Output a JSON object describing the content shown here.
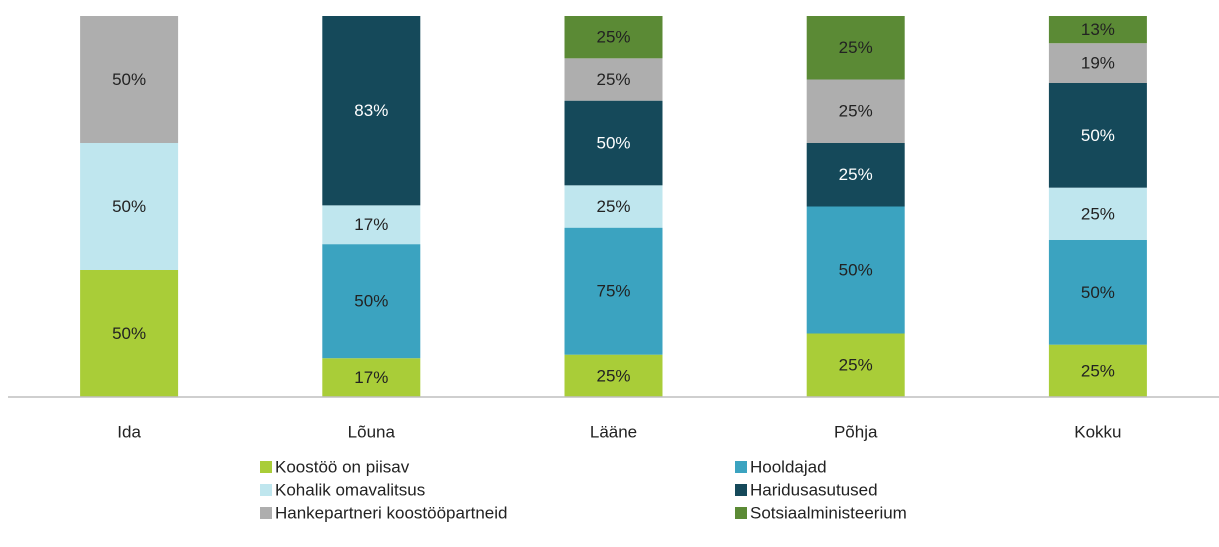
{
  "chart_data": {
    "type": "stacked100",
    "categories": [
      "Ida",
      "Lõuna",
      "Lääne",
      "Põhja",
      "Kokku"
    ],
    "series": [
      {
        "name": "Koostöö on piisav",
        "color": "#a9cd38",
        "values": [
          50,
          17,
          25,
          25,
          25
        ],
        "value_labels": [
          "50%",
          "17%",
          "25%",
          "25%",
          "25%"
        ]
      },
      {
        "name": "Hooldajad",
        "color": "#3ba3c0",
        "values": [
          null,
          50,
          75,
          50,
          50
        ],
        "value_labels": [
          null,
          "50%",
          "75%",
          "50%",
          "50%"
        ]
      },
      {
        "name": "Kohalik omavalitsus",
        "color": "#bfe6ee",
        "values": [
          50,
          17,
          25,
          null,
          25
        ],
        "value_labels": [
          "50%",
          "17%",
          "25%",
          null,
          "25%"
        ]
      },
      {
        "name": "Haridusasutused",
        "color": "#15495a",
        "values": [
          null,
          83,
          50,
          25,
          50
        ],
        "value_labels": [
          null,
          "83%",
          "50%",
          "25%",
          "50%"
        ]
      },
      {
        "name": "Hankepartneri koostööpartneid",
        "color": "#aeaeae",
        "values": [
          50,
          null,
          25,
          25,
          19
        ],
        "value_labels": [
          "50%",
          null,
          "25%",
          "25%",
          "19%"
        ]
      },
      {
        "name": "Sotsiaalministeerium",
        "color": "#5b8a35",
        "values": [
          null,
          null,
          25,
          25,
          13
        ],
        "value_labels": [
          null,
          null,
          "25%",
          "25%",
          "13%"
        ]
      }
    ]
  }
}
